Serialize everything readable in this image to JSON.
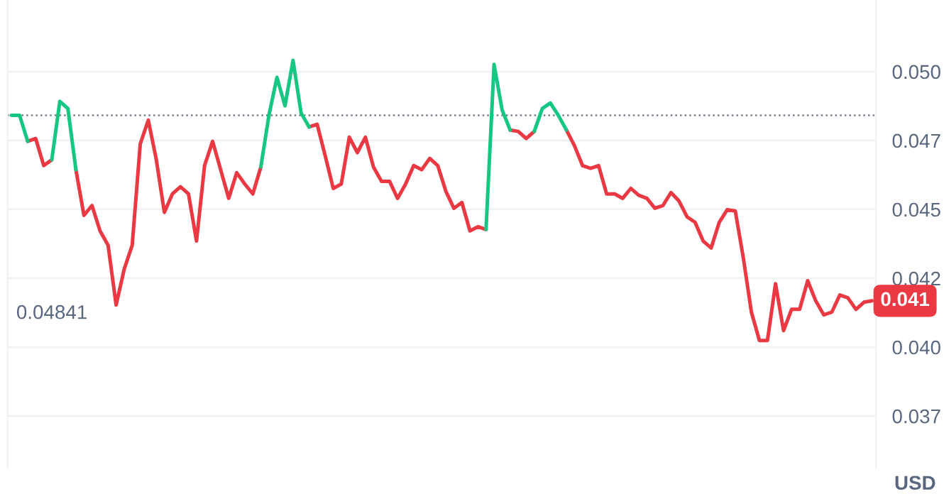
{
  "chart_data": {
    "type": "line",
    "categories": [
      null,
      null,
      null,
      null,
      null,
      null,
      null,
      null,
      null,
      null,
      null,
      null,
      null,
      null,
      null,
      null,
      null,
      null,
      null,
      null,
      null,
      null,
      null,
      null,
      null,
      null,
      null,
      null,
      null,
      null,
      null,
      null,
      null,
      null,
      null,
      null,
      null,
      null,
      null,
      null,
      null,
      null,
      null,
      null,
      null,
      null,
      null,
      null,
      null,
      null,
      null,
      null,
      null,
      null,
      null,
      null,
      null,
      null,
      null,
      null,
      null,
      null,
      null,
      null,
      null,
      null,
      null,
      null,
      null,
      null,
      null,
      null,
      null,
      null,
      null,
      null,
      null,
      null,
      null,
      null,
      null,
      null,
      null,
      null,
      null,
      null,
      null,
      null,
      null,
      null,
      null,
      null,
      null,
      null,
      null,
      null,
      null,
      null,
      null,
      null,
      null,
      null,
      null,
      null,
      null,
      null,
      null,
      null
    ],
    "series": [
      {
        "color": "#ea3943",
        "values": [
          null,
          null,
          0.04747,
          0.04757,
          0.04659,
          0.0468,
          null,
          null,
          0.04644,
          0.04478,
          0.04514,
          0.04422,
          0.0437,
          0.04153,
          0.04282,
          0.0437,
          0.04737,
          0.04824,
          0.0468,
          0.04489,
          0.04556,
          0.04582,
          0.04556,
          0.04385,
          0.04659,
          0.04747,
          0.04644,
          0.0454,
          0.04633,
          0.04592,
          0.04556,
          0.04654,
          null,
          null,
          null,
          null,
          null,
          0.04799,
          0.04809,
          0.04695,
          0.04576,
          0.04592,
          0.04762,
          0.04706,
          0.04762,
          0.04654,
          0.04602,
          0.04602,
          0.0454,
          0.04592,
          0.04659,
          0.04644,
          0.04685,
          0.04659,
          0.04566,
          0.04504,
          0.04525,
          0.04422,
          0.04437,
          0.04427,
          null,
          null,
          0.04788,
          0.04783,
          0.04757,
          0.04783,
          null,
          null,
          null,
          0.04788,
          0.04731,
          0.04659,
          0.04649,
          0.04659,
          0.04556,
          0.04556,
          0.0454,
          0.04576,
          0.04551,
          0.0454,
          0.04504,
          0.04514,
          0.04561,
          0.0453,
          0.04473,
          0.04453,
          0.04385,
          0.0436,
          0.04453,
          0.04499,
          0.04494,
          0.04323,
          0.04127,
          0.04024,
          0.04024,
          0.0423,
          0.0406,
          0.04137,
          0.04137,
          0.04241,
          0.04168,
          0.04117,
          0.04127,
          0.04189,
          0.04179,
          0.04137,
          0.04163,
          0.04168
        ]
      },
      {
        "color": "#16c784",
        "values": [
          0.04841,
          0.04841,
          0.04747,
          null,
          null,
          0.0468,
          0.04892,
          0.04866,
          0.04644,
          null,
          null,
          null,
          null,
          null,
          null,
          null,
          null,
          null,
          null,
          null,
          null,
          null,
          null,
          null,
          null,
          null,
          null,
          null,
          null,
          null,
          null,
          0.04654,
          0.04841,
          0.04979,
          0.04876,
          0.05041,
          0.0485,
          0.04799,
          null,
          null,
          null,
          null,
          null,
          null,
          null,
          null,
          null,
          null,
          null,
          null,
          null,
          null,
          null,
          null,
          null,
          null,
          null,
          null,
          null,
          0.04427,
          0.05026,
          0.04861,
          0.04788,
          null,
          null,
          0.04783,
          0.04866,
          0.04886,
          0.04841,
          0.04788,
          null,
          null,
          null,
          null,
          null,
          null,
          null,
          null,
          null,
          null,
          null,
          null,
          null,
          null,
          null,
          null,
          null,
          null,
          null,
          null,
          null,
          null,
          null,
          null,
          null,
          null,
          null,
          null,
          null,
          null,
          null,
          null,
          null,
          null,
          null,
          null,
          null,
          null
        ]
      }
    ],
    "ylim": [
      0.0356,
      0.0526
    ],
    "yticks": [
      {
        "value": 0.05,
        "label": "0.050"
      },
      {
        "value": 0.0475,
        "label": "0.047"
      },
      {
        "value": 0.045,
        "label": "0.045"
      },
      {
        "value": 0.0425,
        "label": "0.042"
      },
      {
        "value": 0.04,
        "label": "0.040"
      },
      {
        "value": 0.0375,
        "label": "0.037"
      }
    ],
    "ylabel": "USD",
    "grid": "y",
    "ref_lines": [
      {
        "axis": "y",
        "value": 0.04841,
        "label": "0.04841",
        "color": "#777e90",
        "line_style": "dotted"
      }
    ],
    "annotations": [
      "0.041"
    ]
  }
}
